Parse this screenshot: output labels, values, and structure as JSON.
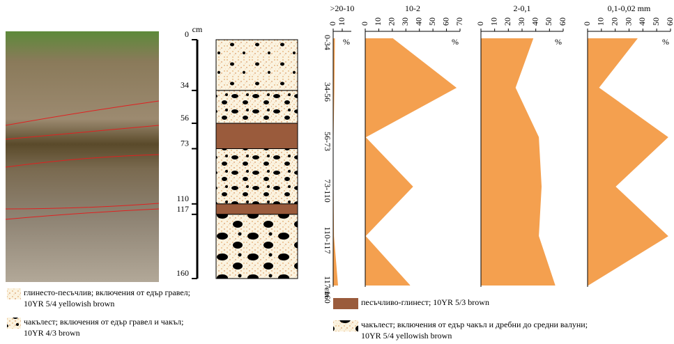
{
  "profile": {
    "unit": "cm",
    "ylim": [
      0,
      160
    ],
    "depth_ticks": [
      0,
      34,
      56,
      73,
      110,
      117,
      160
    ]
  },
  "chart_data": {
    "type": "area",
    "y_label": "cm",
    "unit": "%",
    "categories": [
      "0-34",
      "34-56",
      "56-73",
      "73-110",
      "110-117",
      "117-160"
    ],
    "series": [
      {
        "name": ">20-10",
        "color": "#f4a04f",
        "values": [
          1.5,
          1,
          0,
          0,
          0.5,
          5
        ],
        "xlim": [
          0,
          20
        ],
        "xticks": [
          0,
          10
        ]
      },
      {
        "name": "10-2",
        "color": "#f4a04f",
        "values": [
          20,
          67,
          0,
          35,
          0,
          33
        ],
        "xlim": [
          0,
          70
        ],
        "xticks": [
          0,
          10,
          20,
          30,
          40,
          50,
          60,
          70
        ]
      },
      {
        "name": "2-0,1",
        "color": "#f4a04f",
        "values": [
          38,
          25,
          42,
          44,
          42,
          54
        ],
        "xlim": [
          0,
          60
        ],
        "xticks": [
          0,
          10,
          20,
          30,
          40,
          50,
          60
        ]
      },
      {
        "name": "0,1-0,02 mm",
        "color": "#f4a04f",
        "values": [
          36,
          8,
          58,
          20,
          58,
          0
        ],
        "xlim": [
          0,
          60
        ],
        "xticks": [
          0,
          10,
          20,
          30,
          40,
          50,
          60
        ]
      }
    ]
  },
  "legend": [
    {
      "lines": [
        "глинесто-песъчлив; включения от едър гравел;",
        "10YR 5/4 yellowish brown"
      ]
    },
    {
      "lines": [
        "чакълест; включения от едър гравел и чакъл;",
        "10YR 4/3 brown"
      ]
    },
    {
      "lines": [
        "песъчливо-глинест; 10YR 5/3 brown"
      ]
    },
    {
      "lines": [
        "чакълест; включения от едър чакъл и дребни до средни валуни;",
        "10YR 5/4 yellowish brown"
      ]
    }
  ]
}
